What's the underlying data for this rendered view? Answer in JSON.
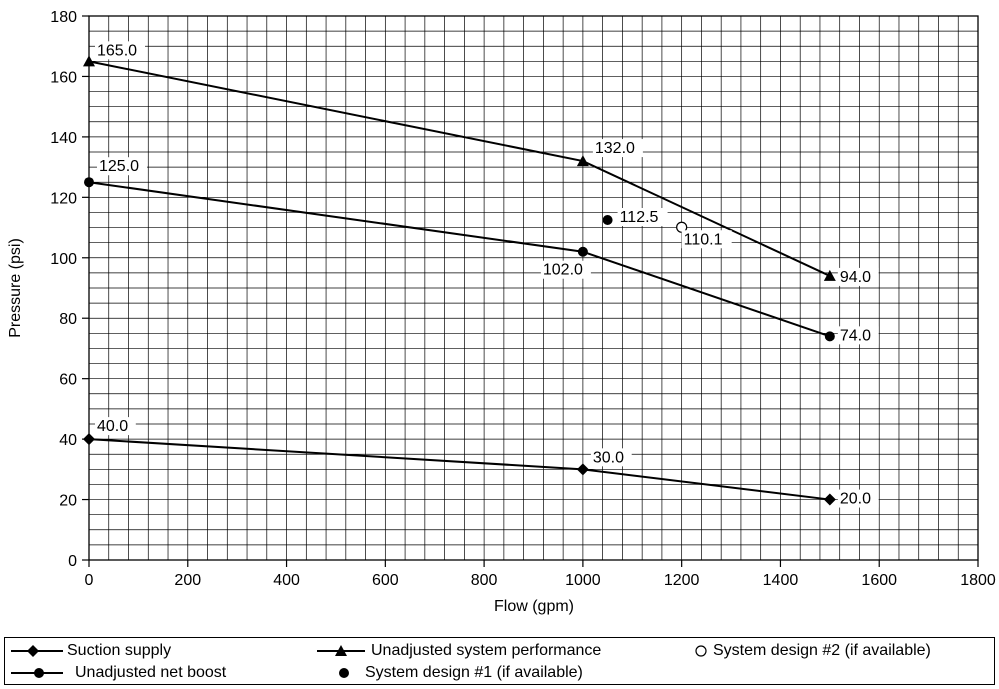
{
  "chart_data": {
    "type": "line",
    "xlabel": "Flow (gpm)",
    "ylabel": "Pressure (psi)",
    "xlim": [
      0,
      1800
    ],
    "ylim": [
      0,
      180
    ],
    "x_ticks": [
      0,
      200,
      400,
      600,
      800,
      1000,
      1200,
      1400,
      1600,
      1800
    ],
    "y_ticks": [
      0,
      20,
      40,
      60,
      80,
      100,
      120,
      140,
      160,
      180
    ],
    "grid": true,
    "grid_minor_step": {
      "x": 40,
      "y": 5
    },
    "series": [
      {
        "name": "Suction supply",
        "marker": "diamond",
        "points": [
          [
            0,
            40.0
          ],
          [
            1000,
            30.0
          ],
          [
            1500,
            20.0
          ]
        ],
        "labels": [
          "40.0",
          "30.0",
          "20.0"
        ]
      },
      {
        "name": "Unadjusted system performance",
        "marker": "triangle",
        "points": [
          [
            0,
            165.0
          ],
          [
            1000,
            132.0
          ],
          [
            1500,
            94.0
          ]
        ],
        "labels": [
          "165.0",
          "132.0",
          "94.0"
        ]
      },
      {
        "name": "Unadjusted net boost",
        "marker": "circle",
        "points": [
          [
            0,
            125.0
          ],
          [
            1000,
            102.0
          ],
          [
            1500,
            74.0
          ]
        ],
        "labels": [
          "125.0",
          "102.0",
          "74.0"
        ]
      },
      {
        "name": "System design #1 (if available)",
        "marker": "dot",
        "points": [
          [
            1050,
            112.5
          ]
        ],
        "labels": [
          "112.5"
        ]
      },
      {
        "name": "System design #2 (if available)",
        "marker": "open-circle",
        "points": [
          [
            1200,
            110.1
          ]
        ],
        "labels": [
          "110.1"
        ]
      }
    ]
  },
  "legend": {
    "suction": "Suction supply",
    "system_perf": "Unadjusted system performance",
    "design2": "System design #2 (if available)",
    "net_boost": "Unadjusted net boost",
    "design1": "System design #1 (if available)"
  }
}
